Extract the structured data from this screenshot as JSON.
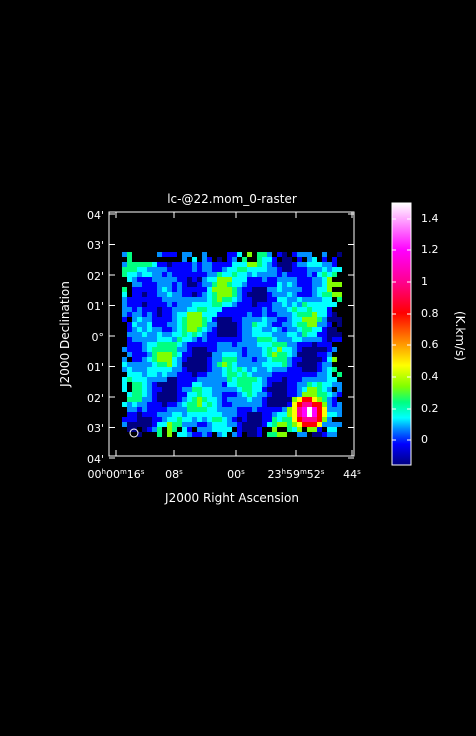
{
  "title": "lc-@22.mom_0-raster",
  "x_axis": {
    "label": "J2000 Right Ascension",
    "ticks": [
      {
        "h": "00",
        "hs": "h",
        "m": "00",
        "ms": "m",
        "s": "16",
        "ss": "s"
      },
      {
        "s": "08",
        "ss": "s"
      },
      {
        "s": "00",
        "ss": "s"
      },
      {
        "h": "23",
        "hs": "h",
        "m": "59",
        "ms": "m",
        "s": "52",
        "ss": "s"
      },
      {
        "s": "44",
        "ss": "s"
      }
    ]
  },
  "y_axis": {
    "label": "J2000 Declination",
    "ticks": [
      "04'",
      "03'",
      "02'",
      "01'",
      "0°",
      "01'",
      "02'",
      "03'",
      "04'"
    ]
  },
  "colorbar": {
    "label": "(K.km/s)",
    "ticks": [
      "1.4",
      "1.2",
      "1",
      "0.8",
      "0.6",
      "0.4",
      "0.2",
      "0"
    ],
    "range": [
      -0.2,
      1.5
    ],
    "colors": [
      "#000080",
      "#0000ff",
      "#0090ff",
      "#00ffff",
      "#00ff80",
      "#80ff00",
      "#ffff00",
      "#ff8000",
      "#ff0000",
      "#ff0090",
      "#ff00ff",
      "#ffffff"
    ]
  },
  "icons": {
    "beam": "beam-ellipse-icon"
  }
}
